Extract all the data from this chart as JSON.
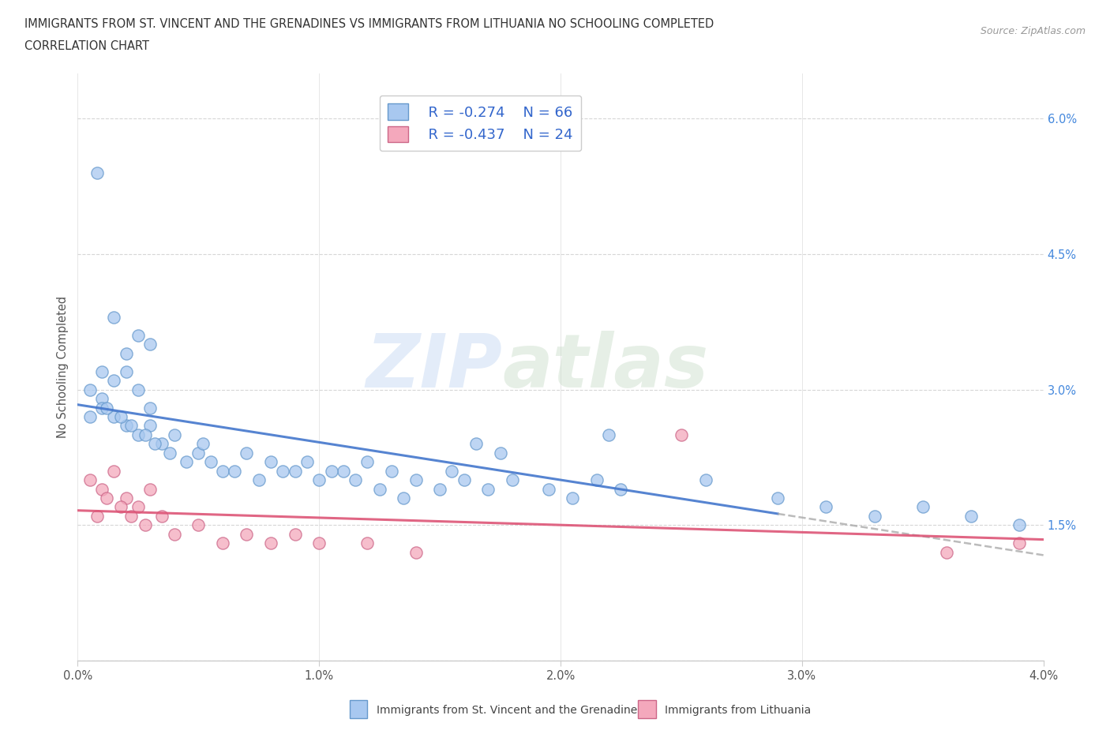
{
  "title_line1": "IMMIGRANTS FROM ST. VINCENT AND THE GRENADINES VS IMMIGRANTS FROM LITHUANIA NO SCHOOLING COMPLETED",
  "title_line2": "CORRELATION CHART",
  "source_text": "Source: ZipAtlas.com",
  "ylabel": "No Schooling Completed",
  "xlim": [
    0.0,
    0.04
  ],
  "ylim": [
    0.0,
    0.065
  ],
  "xticks": [
    0.0,
    0.01,
    0.02,
    0.03,
    0.04
  ],
  "yticks": [
    0.0,
    0.015,
    0.03,
    0.045,
    0.06
  ],
  "xtick_labels": [
    "0.0%",
    "1.0%",
    "2.0%",
    "3.0%",
    "4.0%"
  ],
  "ytick_labels": [
    "",
    "1.5%",
    "3.0%",
    "4.5%",
    "6.0%"
  ],
  "legend_r1": "R = -0.274",
  "legend_n1": "N = 66",
  "legend_r2": "R = -0.437",
  "legend_n2": "N = 24",
  "color_blue": "#a8c8f0",
  "color_pink": "#f4a8bc",
  "line_blue": "#4477cc",
  "line_pink": "#dd5577",
  "line_dashed": "#aaaaaa",
  "watermark_zip": "ZIP",
  "watermark_atlas": "atlas",
  "blue_scatter_x": [
    0.0008,
    0.0015,
    0.0025,
    0.002,
    0.003,
    0.001,
    0.0005,
    0.0015,
    0.002,
    0.0025,
    0.001,
    0.003,
    0.0005,
    0.001,
    0.0015,
    0.002,
    0.0025,
    0.003,
    0.0035,
    0.004,
    0.005,
    0.0055,
    0.006,
    0.007,
    0.008,
    0.009,
    0.01,
    0.011,
    0.012,
    0.013,
    0.014,
    0.015,
    0.0012,
    0.0018,
    0.0022,
    0.0028,
    0.0032,
    0.0038,
    0.0045,
    0.0052,
    0.0065,
    0.0075,
    0.0085,
    0.0095,
    0.0105,
    0.0115,
    0.0125,
    0.0135,
    0.0155,
    0.016,
    0.017,
    0.018,
    0.0195,
    0.0205,
    0.0215,
    0.0225,
    0.0165,
    0.0175,
    0.022,
    0.026,
    0.029,
    0.031,
    0.033,
    0.035,
    0.037,
    0.039
  ],
  "blue_scatter_y": [
    0.054,
    0.038,
    0.036,
    0.034,
    0.035,
    0.032,
    0.03,
    0.031,
    0.032,
    0.03,
    0.029,
    0.028,
    0.027,
    0.028,
    0.027,
    0.026,
    0.025,
    0.026,
    0.024,
    0.025,
    0.023,
    0.022,
    0.021,
    0.023,
    0.022,
    0.021,
    0.02,
    0.021,
    0.022,
    0.021,
    0.02,
    0.019,
    0.028,
    0.027,
    0.026,
    0.025,
    0.024,
    0.023,
    0.022,
    0.024,
    0.021,
    0.02,
    0.021,
    0.022,
    0.021,
    0.02,
    0.019,
    0.018,
    0.021,
    0.02,
    0.019,
    0.02,
    0.019,
    0.018,
    0.02,
    0.019,
    0.024,
    0.023,
    0.025,
    0.02,
    0.018,
    0.017,
    0.016,
    0.017,
    0.016,
    0.015
  ],
  "pink_scatter_x": [
    0.0005,
    0.001,
    0.0015,
    0.002,
    0.0025,
    0.003,
    0.0008,
    0.0012,
    0.0018,
    0.0022,
    0.0028,
    0.0035,
    0.004,
    0.005,
    0.006,
    0.007,
    0.008,
    0.009,
    0.01,
    0.012,
    0.014,
    0.025,
    0.036,
    0.039
  ],
  "pink_scatter_y": [
    0.02,
    0.019,
    0.021,
    0.018,
    0.017,
    0.019,
    0.016,
    0.018,
    0.017,
    0.016,
    0.015,
    0.016,
    0.014,
    0.015,
    0.013,
    0.014,
    0.013,
    0.014,
    0.013,
    0.013,
    0.012,
    0.025,
    0.012,
    0.013
  ]
}
